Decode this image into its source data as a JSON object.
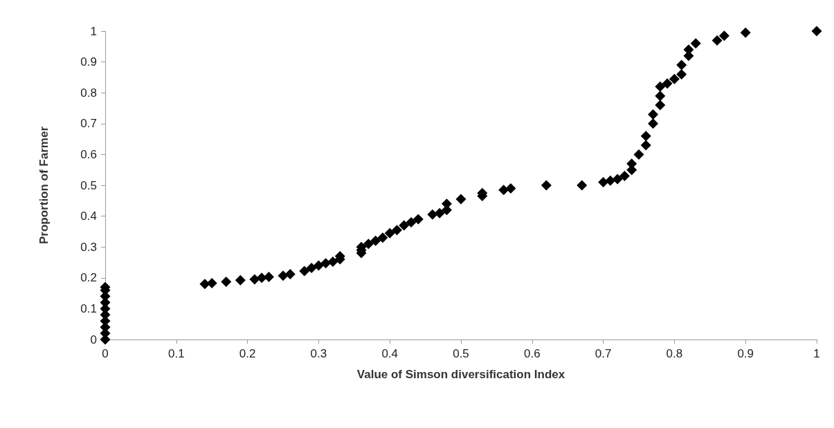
{
  "chart_data": {
    "type": "scatter",
    "xlabel": "Value of Simson diversification Index",
    "ylabel": "Proportion of Farmer",
    "marker": "diamond",
    "grid": false,
    "xlim": [
      0,
      1
    ],
    "xticks": [
      0,
      0.1,
      0.2,
      0.3,
      0.4,
      0.5,
      0.6,
      0.7,
      0.8,
      0.9,
      1
    ],
    "ylim": [
      0,
      1
    ],
    "yticks": [
      0,
      0.1,
      0.2,
      0.3,
      0.4,
      0.5,
      0.6,
      0.7,
      0.8,
      0.9,
      1
    ],
    "series": [
      {
        "color": "#000000",
        "x": [
          0,
          0,
          0,
          0,
          0,
          0,
          0,
          0,
          0,
          0,
          0.14,
          0.15,
          0.17,
          0.19,
          0.21,
          0.22,
          0.23,
          0.25,
          0.26,
          0.28,
          0.29,
          0.3,
          0.31,
          0.32,
          0.33,
          0.33,
          0.36,
          0.36,
          0.36,
          0.37,
          0.38,
          0.39,
          0.4,
          0.41,
          0.42,
          0.43,
          0.44,
          0.46,
          0.47,
          0.48,
          0.48,
          0.5,
          0.53,
          0.53,
          0.56,
          0.57,
          0.62,
          0.67,
          0.7,
          0.71,
          0.72,
          0.73,
          0.74,
          0.74,
          0.75,
          0.76,
          0.76,
          0.77,
          0.77,
          0.78,
          0.78,
          0.78,
          0.79,
          0.8,
          0.81,
          0.81,
          0.82,
          0.82,
          0.83,
          0.86,
          0.87,
          0.9,
          1
        ],
        "values": [
          0,
          0.02,
          0.04,
          0.06,
          0.08,
          0.1,
          0.12,
          0.14,
          0.16,
          0.17,
          0.18,
          0.183,
          0.187,
          0.192,
          0.195,
          0.2,
          0.203,
          0.207,
          0.212,
          0.222,
          0.232,
          0.24,
          0.247,
          0.252,
          0.26,
          0.27,
          0.28,
          0.29,
          0.3,
          0.31,
          0.32,
          0.33,
          0.345,
          0.355,
          0.37,
          0.38,
          0.39,
          0.405,
          0.41,
          0.42,
          0.44,
          0.455,
          0.465,
          0.475,
          0.485,
          0.49,
          0.5,
          0.5,
          0.51,
          0.515,
          0.52,
          0.53,
          0.55,
          0.57,
          0.6,
          0.63,
          0.66,
          0.7,
          0.73,
          0.76,
          0.79,
          0.82,
          0.83,
          0.845,
          0.86,
          0.89,
          0.92,
          0.94,
          0.96,
          0.97,
          0.985,
          0.995,
          1
        ]
      }
    ]
  }
}
